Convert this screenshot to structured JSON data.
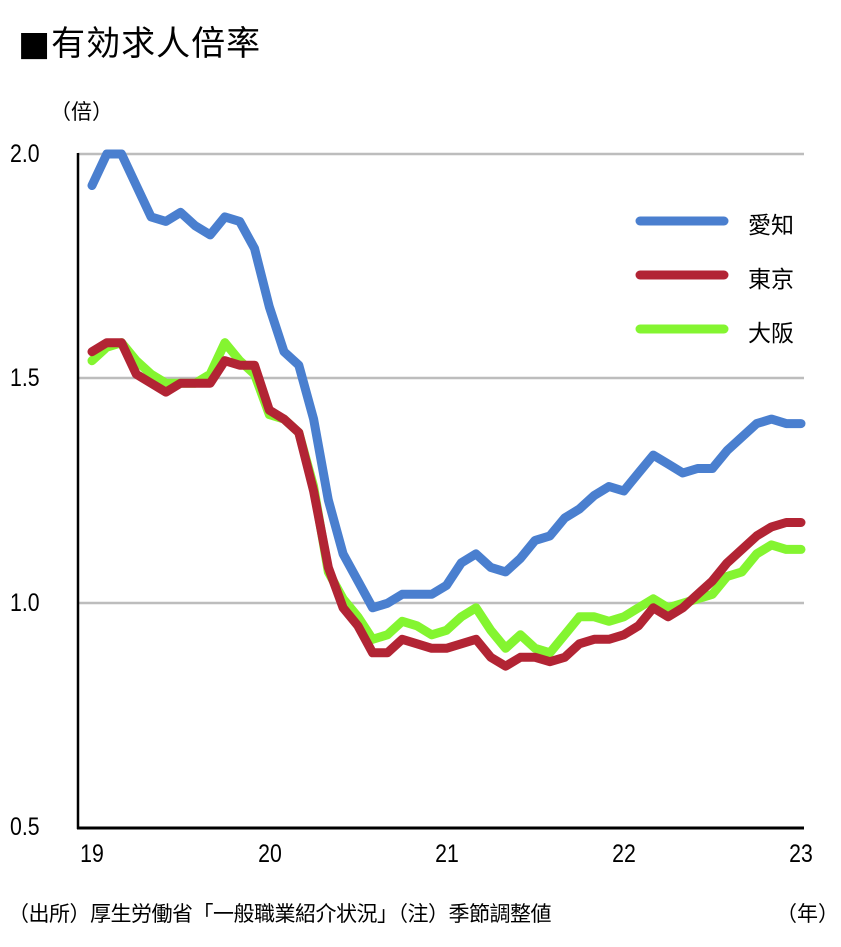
{
  "title": "■有効求人倍率",
  "unit_label": "（倍）",
  "source_note": "（出所）厚生労働省「一般職業紹介状況」（注）季節調整値",
  "x_unit_label": "（年）",
  "colors": {
    "aichi": "#4a7fcf",
    "tokyo": "#b22434",
    "osaka": "#84f530",
    "grid": "#bdbdbd",
    "axis": "#000000"
  },
  "legend": [
    {
      "label": "愛知",
      "color": "#4a7fcf"
    },
    {
      "label": "東京",
      "color": "#b22434"
    },
    {
      "label": "大阪",
      "color": "#84f530"
    }
  ],
  "y_ticks": [
    "2.0",
    "1.5",
    "1.0",
    "0.5"
  ],
  "x_ticks": [
    "19",
    "20",
    "21",
    "22",
    "23"
  ],
  "chart_data": {
    "type": "line",
    "title": "有効求人倍率",
    "xlabel": "（年）",
    "ylabel": "（倍）",
    "ylim": [
      0.5,
      2.0
    ],
    "y_ticks": [
      0.5,
      1.0,
      1.5,
      2.0
    ],
    "x_tick_labels": [
      "19",
      "20",
      "21",
      "22",
      "23"
    ],
    "x_range": [
      "2019-01",
      "2023-01"
    ],
    "frequency": "monthly",
    "grid": "horizontal",
    "legend_position": "upper right",
    "note": "季節調整値",
    "source": "厚生労働省「一般職業紹介状況」",
    "series": [
      {
        "name": "愛知",
        "color": "#4a7fcf",
        "values": [
          1.93,
          2.0,
          2.0,
          1.93,
          1.86,
          1.85,
          1.87,
          1.84,
          1.82,
          1.86,
          1.85,
          1.79,
          1.66,
          1.56,
          1.53,
          1.41,
          1.23,
          1.11,
          1.05,
          0.99,
          1.0,
          1.02,
          1.02,
          1.02,
          1.04,
          1.09,
          1.11,
          1.08,
          1.07,
          1.1,
          1.14,
          1.15,
          1.19,
          1.21,
          1.24,
          1.26,
          1.25,
          1.29,
          1.33,
          1.31,
          1.29,
          1.3,
          1.3,
          1.34,
          1.37,
          1.4,
          1.41,
          1.4,
          1.4
        ]
      },
      {
        "name": "東京",
        "color": "#b22434",
        "values": [
          1.56,
          1.58,
          1.58,
          1.51,
          1.49,
          1.47,
          1.49,
          1.49,
          1.49,
          1.54,
          1.53,
          1.53,
          1.43,
          1.41,
          1.38,
          1.25,
          1.08,
          0.99,
          0.95,
          0.89,
          0.89,
          0.92,
          0.91,
          0.9,
          0.9,
          0.91,
          0.92,
          0.88,
          0.86,
          0.88,
          0.88,
          0.87,
          0.88,
          0.91,
          0.92,
          0.92,
          0.93,
          0.95,
          0.99,
          0.97,
          0.99,
          1.02,
          1.05,
          1.09,
          1.12,
          1.15,
          1.17,
          1.18,
          1.18
        ]
      },
      {
        "name": "大阪",
        "color": "#84f530",
        "values": [
          1.54,
          1.57,
          1.58,
          1.54,
          1.51,
          1.49,
          1.49,
          1.49,
          1.51,
          1.58,
          1.54,
          1.51,
          1.42,
          1.41,
          1.38,
          1.26,
          1.07,
          1.01,
          0.97,
          0.92,
          0.93,
          0.96,
          0.95,
          0.93,
          0.94,
          0.97,
          0.99,
          0.94,
          0.9,
          0.93,
          0.9,
          0.89,
          0.93,
          0.97,
          0.97,
          0.96,
          0.97,
          0.99,
          1.01,
          0.99,
          1.0,
          1.01,
          1.02,
          1.06,
          1.07,
          1.11,
          1.13,
          1.12,
          1.12
        ]
      }
    ]
  }
}
